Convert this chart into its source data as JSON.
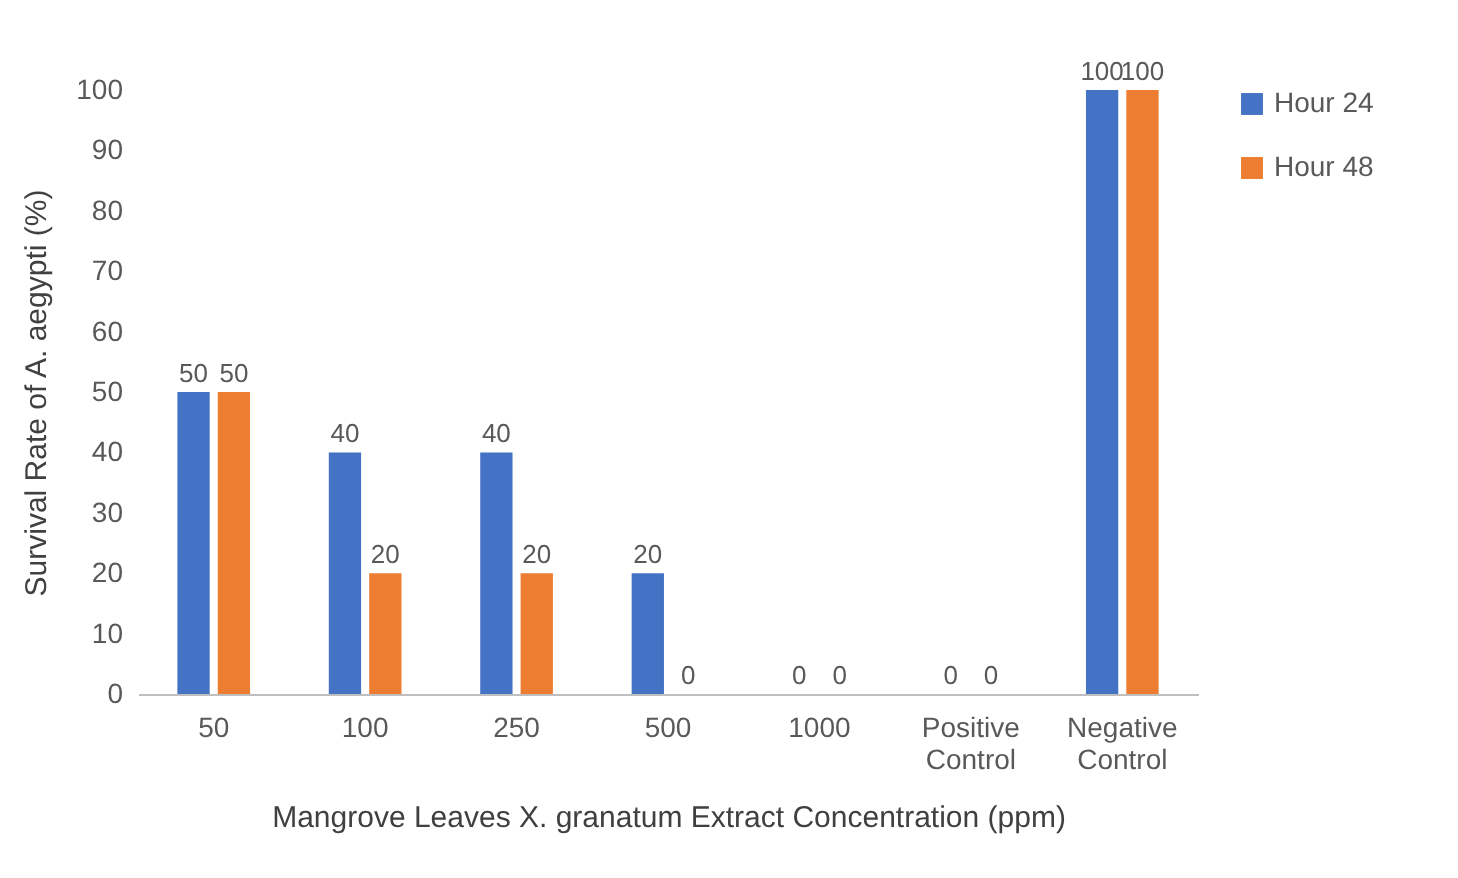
{
  "chart_data": {
    "type": "bar",
    "xlabel": "Mangrove Leaves X. granatum Extract Concentration (ppm)",
    "ylabel": "Survival Rate of A. aegypti (%)",
    "categories": [
      "50",
      "100",
      "250",
      "500",
      "1000",
      "Positive Control",
      "Negative Control"
    ],
    "series": [
      {
        "name": "Hour 24",
        "color": "#4472c4",
        "values": [
          50,
          40,
          40,
          20,
          0,
          0,
          100
        ]
      },
      {
        "name": "Hour 48",
        "color": "#ed7d31",
        "values": [
          50,
          20,
          20,
          0,
          0,
          0,
          100
        ]
      }
    ],
    "ylim": [
      0,
      100
    ],
    "yticks": [
      0,
      10,
      20,
      30,
      40,
      50,
      60,
      70,
      80,
      90,
      100
    ],
    "grid": false,
    "legend": "right",
    "data_labels": true
  }
}
